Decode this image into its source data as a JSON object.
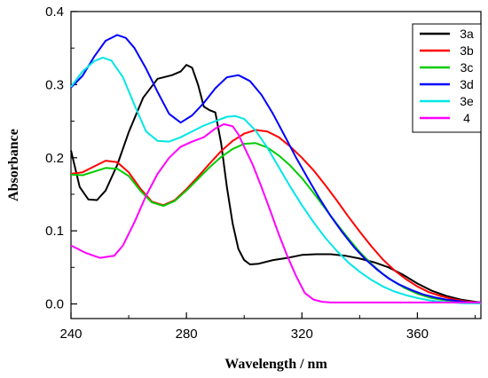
{
  "chart_data": {
    "type": "line",
    "xlabel": "Wavelength / nm",
    "ylabel": "Absorbance",
    "xlim": [
      240,
      382
    ],
    "ylim": [
      -0.02,
      0.4
    ],
    "xticks": [
      240,
      280,
      320,
      360
    ],
    "xtick_labels": [
      "240",
      "280",
      "320",
      "360"
    ],
    "yticks": [
      0.0,
      0.1,
      0.2,
      0.3,
      0.4
    ],
    "ytick_labels": [
      "0.0",
      "0.1",
      "0.2",
      "0.3",
      "0.4"
    ],
    "grid": false,
    "legend_position": "top-right",
    "series": [
      {
        "name": "3a",
        "color": "#000000",
        "x": [
          240,
          243,
          246,
          249,
          252,
          256,
          260,
          265,
          270,
          275,
          278,
          280,
          282,
          284,
          286,
          288,
          290,
          292,
          294,
          296,
          298,
          300,
          302,
          305,
          310,
          315,
          320,
          325,
          330,
          335,
          340,
          345,
          350,
          355,
          360,
          365,
          370,
          375,
          380,
          382
        ],
        "y": [
          0.21,
          0.16,
          0.143,
          0.142,
          0.155,
          0.19,
          0.235,
          0.282,
          0.308,
          0.313,
          0.318,
          0.327,
          0.323,
          0.3,
          0.27,
          0.265,
          0.262,
          0.22,
          0.16,
          0.11,
          0.075,
          0.06,
          0.054,
          0.055,
          0.06,
          0.063,
          0.067,
          0.068,
          0.068,
          0.066,
          0.062,
          0.057,
          0.05,
          0.04,
          0.028,
          0.018,
          0.011,
          0.006,
          0.003,
          0.002
        ]
      },
      {
        "name": "3b",
        "color": "#ff0000",
        "x": [
          240,
          244,
          248,
          252,
          256,
          260,
          264,
          268,
          272,
          276,
          280,
          284,
          288,
          292,
          296,
          300,
          304,
          308,
          312,
          316,
          320,
          324,
          328,
          332,
          336,
          340,
          344,
          348,
          352,
          356,
          360,
          364,
          368,
          372,
          376,
          380,
          382
        ],
        "y": [
          0.178,
          0.18,
          0.188,
          0.196,
          0.194,
          0.18,
          0.158,
          0.14,
          0.135,
          0.142,
          0.157,
          0.174,
          0.192,
          0.209,
          0.223,
          0.233,
          0.238,
          0.236,
          0.228,
          0.215,
          0.2,
          0.183,
          0.163,
          0.142,
          0.12,
          0.099,
          0.079,
          0.061,
          0.046,
          0.034,
          0.024,
          0.016,
          0.011,
          0.007,
          0.004,
          0.002,
          0.002
        ]
      },
      {
        "name": "3c",
        "color": "#00cc00",
        "x": [
          240,
          244,
          248,
          252,
          256,
          260,
          264,
          268,
          272,
          276,
          280,
          284,
          288,
          292,
          296,
          300,
          304,
          308,
          312,
          316,
          320,
          324,
          328,
          332,
          336,
          340,
          344,
          348,
          352,
          356,
          360,
          364,
          368,
          372,
          376,
          380,
          382
        ],
        "y": [
          0.177,
          0.176,
          0.181,
          0.186,
          0.185,
          0.175,
          0.155,
          0.139,
          0.134,
          0.141,
          0.155,
          0.171,
          0.187,
          0.201,
          0.212,
          0.219,
          0.22,
          0.214,
          0.203,
          0.189,
          0.172,
          0.152,
          0.131,
          0.11,
          0.09,
          0.071,
          0.055,
          0.041,
          0.03,
          0.021,
          0.014,
          0.009,
          0.006,
          0.004,
          0.002,
          0.001,
          0.001
        ]
      },
      {
        "name": "3d",
        "color": "#0000ff",
        "x": [
          240,
          244,
          248,
          252,
          256,
          259,
          262,
          266,
          270,
          274,
          278,
          282,
          286,
          290,
          294,
          298,
          302,
          306,
          310,
          314,
          318,
          322,
          326,
          330,
          334,
          338,
          342,
          346,
          350,
          354,
          358,
          362,
          366,
          370,
          374,
          378,
          382
        ],
        "y": [
          0.296,
          0.312,
          0.338,
          0.36,
          0.368,
          0.364,
          0.35,
          0.322,
          0.29,
          0.26,
          0.248,
          0.258,
          0.275,
          0.295,
          0.31,
          0.313,
          0.305,
          0.286,
          0.26,
          0.23,
          0.2,
          0.172,
          0.145,
          0.12,
          0.098,
          0.078,
          0.061,
          0.047,
          0.035,
          0.026,
          0.019,
          0.013,
          0.009,
          0.006,
          0.004,
          0.002,
          0.002
        ]
      },
      {
        "name": "3e",
        "color": "#00e6e6",
        "x": [
          240,
          244,
          248,
          251,
          254,
          258,
          262,
          266,
          270,
          274,
          278,
          282,
          286,
          290,
          294,
          297,
          300,
          304,
          308,
          312,
          316,
          320,
          324,
          328,
          332,
          336,
          340,
          344,
          348,
          352,
          356,
          360,
          364,
          368,
          372,
          376,
          380,
          382
        ],
        "y": [
          0.297,
          0.318,
          0.332,
          0.337,
          0.333,
          0.31,
          0.272,
          0.236,
          0.223,
          0.222,
          0.228,
          0.236,
          0.244,
          0.25,
          0.256,
          0.257,
          0.253,
          0.237,
          0.214,
          0.187,
          0.16,
          0.135,
          0.112,
          0.091,
          0.073,
          0.057,
          0.044,
          0.033,
          0.024,
          0.017,
          0.012,
          0.008,
          0.005,
          0.003,
          0.002,
          0.001,
          0.001,
          0.001
        ]
      },
      {
        "name": "4",
        "color": "#ff00ff",
        "x": [
          240,
          245,
          250,
          255,
          258,
          262,
          266,
          270,
          274,
          278,
          282,
          286,
          290,
          293,
          296,
          298,
          300,
          303,
          306,
          309,
          312,
          315,
          318,
          321,
          324,
          327,
          330,
          335,
          340,
          350,
          360,
          370,
          382
        ],
        "y": [
          0.08,
          0.07,
          0.063,
          0.066,
          0.08,
          0.112,
          0.148,
          0.178,
          0.2,
          0.215,
          0.222,
          0.228,
          0.24,
          0.246,
          0.243,
          0.232,
          0.215,
          0.19,
          0.16,
          0.128,
          0.095,
          0.065,
          0.038,
          0.015,
          0.006,
          0.003,
          0.002,
          0.002,
          0.002,
          0.002,
          0.002,
          0.002,
          0.002
        ]
      }
    ]
  }
}
